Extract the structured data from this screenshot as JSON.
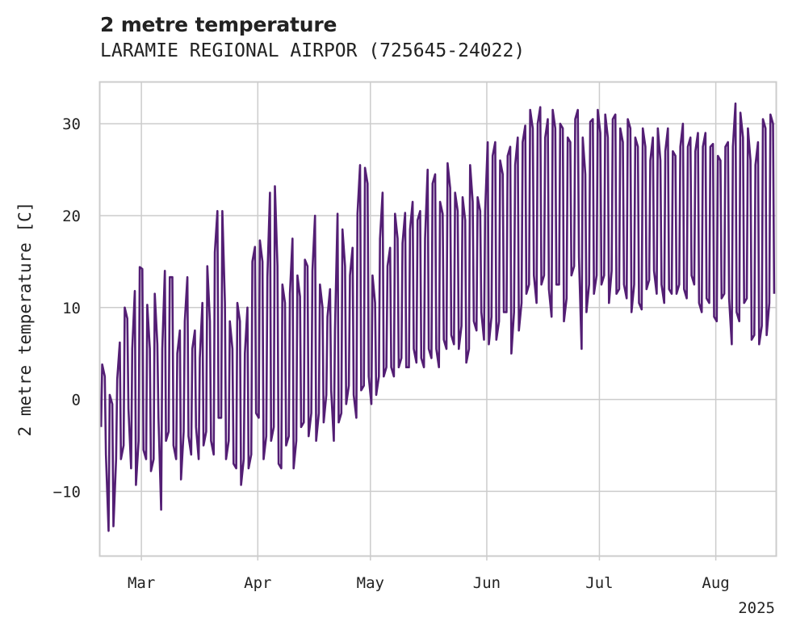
{
  "chart_data": {
    "type": "line",
    "title": "2 metre temperature",
    "subtitle": "LARAMIE REGIONAL AIRPOR (725645-24022)",
    "xlabel": "",
    "ylabel": "2 metre temperature [C]",
    "x_tick_labels": [
      "Mar",
      "Apr",
      "May",
      "Jun",
      "Jul",
      "Aug"
    ],
    "x_tick_dates": [
      "2025-03-01",
      "2025-04-01",
      "2025-05-01",
      "2025-06-01",
      "2025-07-01",
      "2025-08-01"
    ],
    "x_year_label": "2025",
    "xlim": [
      "2025-02-18",
      "2025-08-17"
    ],
    "y_ticks": [
      -10,
      0,
      10,
      20,
      30
    ],
    "y_tick_labels": [
      "−10",
      "0",
      "10",
      "20",
      "30"
    ],
    "ylim": [
      -17,
      34.5
    ],
    "grid": true,
    "legend": "none",
    "series": [
      {
        "color": "#531e74",
        "note": "daily min / max envelope of hourly temperature readings",
        "points": [
          [
            "2025-02-18",
            -3,
            3.8
          ],
          [
            "2025-02-19",
            -6,
            2.5
          ],
          [
            "2025-02-20",
            -14.3,
            0.5
          ],
          [
            "2025-02-21",
            -13.8,
            -0.5
          ],
          [
            "2025-02-22",
            -6.5,
            2.2
          ],
          [
            "2025-02-23",
            -6.5,
            6.2
          ],
          [
            "2025-02-24",
            -5,
            10
          ],
          [
            "2025-02-25",
            -1,
            8.8
          ],
          [
            "2025-02-26",
            -7.5,
            5.5
          ],
          [
            "2025-02-27",
            -9.3,
            11.8
          ],
          [
            "2025-02-28",
            -4.5,
            14.4
          ],
          [
            "2025-03-01",
            -5.5,
            14.2
          ],
          [
            "2025-03-02",
            -6.5,
            10.3
          ],
          [
            "2025-03-03",
            -7.8,
            5.5
          ],
          [
            "2025-03-04",
            -6.5,
            11.5
          ],
          [
            "2025-03-05",
            -2,
            6
          ],
          [
            "2025-03-06",
            -12,
            5.5
          ],
          [
            "2025-03-07",
            -4.5,
            14
          ],
          [
            "2025-03-08",
            -3.5,
            13.3
          ],
          [
            "2025-03-09",
            -5,
            13.3
          ],
          [
            "2025-03-10",
            -6.5,
            5
          ],
          [
            "2025-03-11",
            -8.7,
            7.5
          ],
          [
            "2025-03-12",
            -3.5,
            8.5
          ],
          [
            "2025-03-13",
            -4,
            13.3
          ],
          [
            "2025-03-14",
            -6,
            5.5
          ],
          [
            "2025-03-15",
            -3,
            7.5
          ],
          [
            "2025-03-16",
            -6.5,
            4.5
          ],
          [
            "2025-03-17",
            -5,
            10.5
          ],
          [
            "2025-03-18",
            -3.5,
            14.5
          ],
          [
            "2025-03-19",
            -4.5,
            8.5
          ],
          [
            "2025-03-20",
            -6,
            16
          ],
          [
            "2025-03-21",
            -2,
            20.5
          ],
          [
            "2025-03-22",
            -2,
            20.5
          ],
          [
            "2025-03-23",
            -6.5,
            10.5
          ],
          [
            "2025-03-24",
            -4.5,
            8.5
          ],
          [
            "2025-03-25",
            -7,
            5.5
          ],
          [
            "2025-03-26",
            -7.5,
            10.5
          ],
          [
            "2025-03-27",
            -9.3,
            8.5
          ],
          [
            "2025-03-28",
            -6.5,
            5
          ],
          [
            "2025-03-29",
            -7.5,
            10
          ],
          [
            "2025-03-30",
            -6,
            15
          ],
          [
            "2025-03-31",
            -1.5,
            16.6
          ],
          [
            "2025-04-01",
            -2,
            17.3
          ],
          [
            "2025-04-02",
            -6.5,
            15
          ],
          [
            "2025-04-03",
            -4,
            13.3
          ],
          [
            "2025-04-04",
            -4.5,
            22.5
          ],
          [
            "2025-04-05",
            -3,
            23.2
          ],
          [
            "2025-04-06",
            -7,
            14.5
          ],
          [
            "2025-04-07",
            -7.5,
            12.5
          ],
          [
            "2025-04-08",
            -5,
            10.5
          ],
          [
            "2025-04-09",
            -4,
            11.5
          ],
          [
            "2025-04-10",
            -7.5,
            17.5
          ],
          [
            "2025-04-11",
            -4.5,
            13.5
          ],
          [
            "2025-04-12",
            -3,
            11.2
          ],
          [
            "2025-04-13",
            -2.5,
            15.2
          ],
          [
            "2025-04-14",
            -4,
            14.5
          ],
          [
            "2025-04-15",
            -1.5,
            14
          ],
          [
            "2025-04-16",
            -4.5,
            20
          ],
          [
            "2025-04-17",
            -1.5,
            12.5
          ],
          [
            "2025-04-18",
            -2.5,
            10
          ],
          [
            "2025-04-19",
            0.5,
            9
          ],
          [
            "2025-04-20",
            1,
            12
          ],
          [
            "2025-04-21",
            -4.5,
            7.5
          ],
          [
            "2025-04-22",
            -2.5,
            20.2
          ],
          [
            "2025-04-23",
            -1.5,
            18.5
          ],
          [
            "2025-04-24",
            -0.5,
            14.5
          ],
          [
            "2025-04-25",
            1.5,
            13.5
          ],
          [
            "2025-04-26",
            0.5,
            16.5
          ],
          [
            "2025-04-27",
            -2,
            20.2
          ],
          [
            "2025-04-28",
            1,
            25.5
          ],
          [
            "2025-04-29",
            1.5,
            25.2
          ],
          [
            "2025-04-30",
            2.5,
            23.5
          ],
          [
            "2025-05-01",
            -0.5,
            13.5
          ],
          [
            "2025-05-02",
            0.5,
            10.5
          ],
          [
            "2025-05-03",
            2.5,
            17.5
          ],
          [
            "2025-05-04",
            2.5,
            22.5
          ],
          [
            "2025-05-05",
            3.5,
            14.5
          ],
          [
            "2025-05-06",
            3.5,
            16.5
          ],
          [
            "2025-05-07",
            2.5,
            20.2
          ],
          [
            "2025-05-08",
            3.5,
            17.5
          ],
          [
            "2025-05-09",
            4.5,
            17
          ],
          [
            "2025-05-10",
            3.5,
            20.3
          ],
          [
            "2025-05-11",
            3.5,
            18.5
          ],
          [
            "2025-05-12",
            5.5,
            21.5
          ],
          [
            "2025-05-13",
            4,
            19.5
          ],
          [
            "2025-05-14",
            4.5,
            20.5
          ],
          [
            "2025-05-15",
            3.5,
            17.5
          ],
          [
            "2025-05-16",
            5.5,
            25
          ],
          [
            "2025-05-17",
            4.5,
            23.5
          ],
          [
            "2025-05-18",
            5.5,
            24.5
          ],
          [
            "2025-05-19",
            3.5,
            21.5
          ],
          [
            "2025-05-20",
            6.5,
            20.2
          ],
          [
            "2025-05-21",
            5.5,
            25.7
          ],
          [
            "2025-05-22",
            7,
            23
          ],
          [
            "2025-05-23",
            6,
            22.5
          ],
          [
            "2025-05-24",
            5.5,
            20.5
          ],
          [
            "2025-05-25",
            8,
            22
          ],
          [
            "2025-05-26",
            4,
            19.5
          ],
          [
            "2025-05-27",
            5.5,
            25.5
          ],
          [
            "2025-05-28",
            8.5,
            21.5
          ],
          [
            "2025-05-29",
            7.5,
            22
          ],
          [
            "2025-05-30",
            9.5,
            20.5
          ],
          [
            "2025-05-31",
            6.5,
            20.5
          ],
          [
            "2025-06-01",
            6,
            28
          ],
          [
            "2025-06-02",
            9,
            26.5
          ],
          [
            "2025-06-03",
            6.5,
            28
          ],
          [
            "2025-06-04",
            8.5,
            26
          ],
          [
            "2025-06-05",
            9.5,
            24.5
          ],
          [
            "2025-06-06",
            9.5,
            26.5
          ],
          [
            "2025-06-07",
            5,
            27.5
          ],
          [
            "2025-06-08",
            9.5,
            25.5
          ],
          [
            "2025-06-09",
            7.5,
            28.5
          ],
          [
            "2025-06-10",
            10.5,
            28
          ],
          [
            "2025-06-11",
            11.5,
            29.8
          ],
          [
            "2025-06-12",
            12.5,
            31.5
          ],
          [
            "2025-06-13",
            13.5,
            29.5
          ],
          [
            "2025-06-14",
            10.5,
            30
          ],
          [
            "2025-06-15",
            12.5,
            31.8
          ],
          [
            "2025-06-16",
            13.5,
            28.5
          ],
          [
            "2025-06-17",
            12,
            30.5
          ],
          [
            "2025-06-18",
            9,
            31.5
          ],
          [
            "2025-06-19",
            12.5,
            29.5
          ],
          [
            "2025-06-20",
            12.5,
            30
          ],
          [
            "2025-06-21",
            8.5,
            29.5
          ],
          [
            "2025-06-22",
            11,
            28.5
          ],
          [
            "2025-06-23",
            13.5,
            28
          ],
          [
            "2025-06-24",
            14.5,
            30.5
          ],
          [
            "2025-06-25",
            15.5,
            31.5
          ],
          [
            "2025-06-26",
            5.5,
            28.5
          ],
          [
            "2025-06-27",
            9.5,
            24.5
          ],
          [
            "2025-06-28",
            12.5,
            30.2
          ],
          [
            "2025-06-29",
            11.5,
            30.5
          ],
          [
            "2025-06-30",
            13.5,
            31.5
          ],
          [
            "2025-07-01",
            12.5,
            29
          ],
          [
            "2025-07-02",
            13.5,
            31
          ],
          [
            "2025-07-03",
            10.5,
            28.5
          ],
          [
            "2025-07-04",
            14,
            30.5
          ],
          [
            "2025-07-05",
            11.5,
            31
          ],
          [
            "2025-07-06",
            12,
            29.5
          ],
          [
            "2025-07-07",
            12.5,
            28
          ],
          [
            "2025-07-08",
            11,
            30.5
          ],
          [
            "2025-07-09",
            9.5,
            29.5
          ],
          [
            "2025-07-10",
            12.5,
            28.5
          ],
          [
            "2025-07-11",
            10.5,
            27.5
          ],
          [
            "2025-07-12",
            9.8,
            29.5
          ],
          [
            "2025-07-13",
            12,
            27.5
          ],
          [
            "2025-07-14",
            13,
            26
          ],
          [
            "2025-07-15",
            14,
            28.5
          ],
          [
            "2025-07-16",
            11.5,
            29.5
          ],
          [
            "2025-07-17",
            12.5,
            26
          ],
          [
            "2025-07-18",
            10.5,
            27
          ],
          [
            "2025-07-19",
            12,
            29.5
          ],
          [
            "2025-07-20",
            11.5,
            27
          ],
          [
            "2025-07-21",
            11.5,
            26.5
          ],
          [
            "2025-07-22",
            12.5,
            27.5
          ],
          [
            "2025-07-23",
            12,
            30
          ],
          [
            "2025-07-24",
            11,
            27.5
          ],
          [
            "2025-07-25",
            13.5,
            28.5
          ],
          [
            "2025-07-26",
            12.5,
            27
          ],
          [
            "2025-07-27",
            10.5,
            29
          ],
          [
            "2025-07-28",
            9.5,
            27.5
          ],
          [
            "2025-07-29",
            11,
            29
          ],
          [
            "2025-07-30",
            10.5,
            27.5
          ],
          [
            "2025-07-31",
            9,
            27.8
          ],
          [
            "2025-08-01",
            8.5,
            26.5
          ],
          [
            "2025-08-02",
            11,
            26
          ],
          [
            "2025-08-03",
            11.5,
            27.5
          ],
          [
            "2025-08-04",
            11,
            28
          ],
          [
            "2025-08-05",
            6,
            27.5
          ],
          [
            "2025-08-06",
            9.5,
            32.2
          ],
          [
            "2025-08-07",
            8.5,
            31.2
          ],
          [
            "2025-08-08",
            10.5,
            28.5
          ],
          [
            "2025-08-09",
            11,
            29.5
          ],
          [
            "2025-08-10",
            6.5,
            26
          ],
          [
            "2025-08-11",
            7,
            25.5
          ],
          [
            "2025-08-12",
            6,
            28
          ],
          [
            "2025-08-13",
            8,
            30.5
          ],
          [
            "2025-08-14",
            7,
            29.5
          ],
          [
            "2025-08-15",
            10.5,
            31
          ],
          [
            "2025-08-16",
            11.5,
            30
          ]
        ]
      }
    ]
  }
}
